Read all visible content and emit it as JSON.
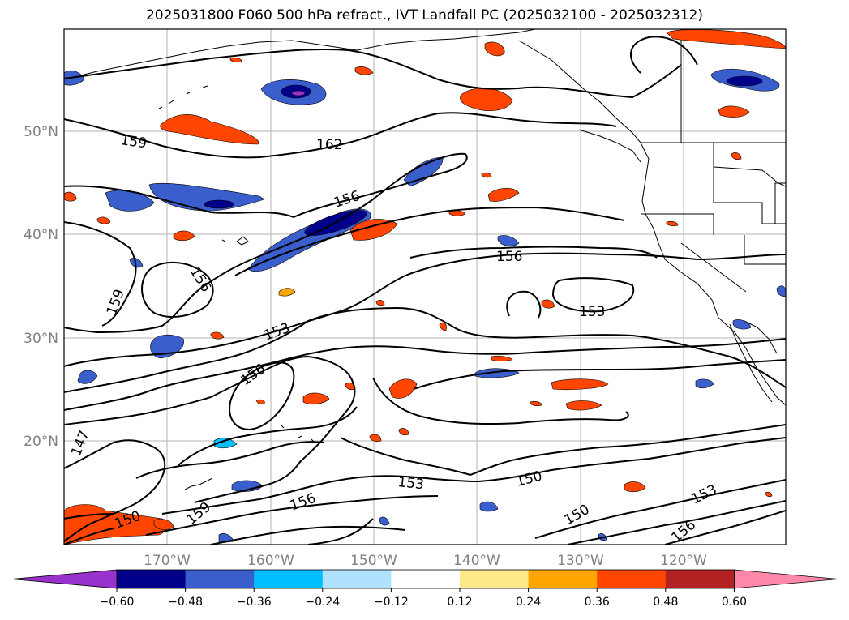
{
  "title": "2025031800 F060 500 hPa refract., IVT Landfall PC (2025032100 - 2025032312)",
  "lat_labels": [
    "50°N",
    "40°N",
    "30°N",
    "20°N"
  ],
  "lon_labels": [
    "170°W",
    "160°W",
    "150°W",
    "140°W",
    "130°W",
    "120°W"
  ],
  "contour_labels": [
    "159",
    "162",
    "156",
    "156",
    "159",
    "156",
    "153",
    "153",
    "156",
    "147",
    "150",
    "159",
    "156",
    "153",
    "150",
    "150",
    "153",
    "156"
  ],
  "colorbar": {
    "ticks": [
      "−0.60",
      "−0.48",
      "−0.36",
      "−0.24",
      "−0.12",
      "0.12",
      "0.24",
      "0.36",
      "0.48",
      "0.60"
    ],
    "colors": [
      "#9932cc",
      "#00008b",
      "#3a5fcd",
      "#00bfff",
      "#b0e2ff",
      "#ffffff",
      "#ffe88a",
      "#ffa500",
      "#ff4500",
      "#b22222",
      "#ff88aa"
    ]
  }
}
